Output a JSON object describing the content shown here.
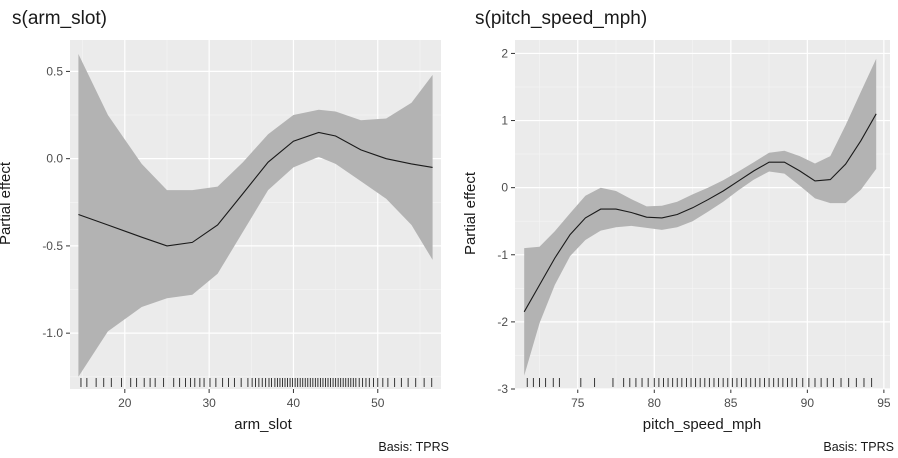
{
  "chart_data": [
    {
      "type": "line",
      "title": "s(arm_slot)",
      "xlabel": "arm_slot",
      "ylabel": "Partial effect",
      "caption": "Basis: TPRS",
      "xlim": [
        13.5,
        57.5
      ],
      "ylim": [
        -1.32,
        0.68
      ],
      "xticks": [
        20,
        30,
        40,
        50
      ],
      "yticks": [
        -1.0,
        -0.5,
        0.0,
        0.5
      ],
      "ytick_labels": [
        "-1.0",
        "-0.5",
        "0.0",
        "0.5"
      ],
      "grid": true,
      "series": [
        {
          "x": [
            14.5,
            18,
            22,
            25,
            28,
            31,
            34,
            37,
            40,
            43,
            45,
            48,
            51,
            54,
            56.5
          ],
          "y": [
            -0.32,
            -0.38,
            -0.45,
            -0.5,
            -0.48,
            -0.38,
            -0.2,
            -0.02,
            0.1,
            0.15,
            0.13,
            0.05,
            0.0,
            -0.03,
            -0.05
          ]
        }
      ],
      "band_upper": [
        0.6,
        0.25,
        -0.03,
        -0.18,
        -0.18,
        -0.16,
        -0.02,
        0.14,
        0.25,
        0.28,
        0.27,
        0.22,
        0.23,
        0.32,
        0.48
      ],
      "band_lower": [
        -1.25,
        -0.99,
        -0.85,
        -0.8,
        -0.78,
        -0.66,
        -0.42,
        -0.18,
        -0.05,
        0.01,
        -0.03,
        -0.13,
        -0.23,
        -0.38,
        -0.58
      ],
      "rug": [
        14.8,
        15.5,
        16.6,
        17.5,
        18.4,
        19.6,
        20.7,
        21.4,
        22.3,
        23.0,
        23.6,
        24.6,
        25.8,
        26.5,
        27.2,
        27.8,
        28.3,
        28.9,
        29.4,
        30.1,
        30.8,
        31.6,
        32.3,
        33.0,
        33.8,
        34.6,
        35.1,
        35.5,
        35.9,
        36.3,
        36.7,
        37.1,
        37.4,
        37.8,
        38.1,
        38.4,
        38.7,
        39.0,
        39.3,
        39.6,
        39.9,
        40.2,
        40.5,
        40.8,
        41.1,
        41.4,
        41.7,
        42.0,
        42.3,
        42.6,
        42.9,
        43.2,
        43.5,
        43.8,
        44.1,
        44.4,
        44.7,
        45.0,
        45.3,
        45.6,
        45.9,
        46.2,
        46.5,
        46.8,
        47.1,
        47.4,
        47.8,
        48.2,
        48.6,
        49.0,
        49.5,
        50.0,
        50.6,
        51.2,
        52.0,
        52.8,
        53.6,
        54.5,
        55.5,
        56.4
      ]
    },
    {
      "type": "line",
      "title": "s(pitch_speed_mph)",
      "xlabel": "pitch_speed_mph",
      "ylabel": "Partial effect",
      "caption": "Basis: TPRS",
      "xlim": [
        70.9,
        95.4
      ],
      "ylim": [
        -3.0,
        2.2
      ],
      "xticks": [
        75,
        80,
        85,
        90,
        95
      ],
      "yticks": [
        -3,
        -2,
        -1,
        0,
        1,
        2
      ],
      "ytick_labels": [
        "-3",
        "-2",
        "-1",
        "0",
        "1",
        "2"
      ],
      "grid": true,
      "series": [
        {
          "x": [
            71.5,
            72.5,
            73.5,
            74.5,
            75.5,
            76.5,
            77.5,
            78.5,
            79.5,
            80.5,
            81.5,
            82.5,
            83.5,
            84.5,
            85.5,
            86.5,
            87.5,
            88.5,
            89.5,
            90.5,
            91.5,
            92.5,
            93.5,
            94.5
          ],
          "y": [
            -1.85,
            -1.45,
            -1.05,
            -0.7,
            -0.45,
            -0.32,
            -0.32,
            -0.37,
            -0.44,
            -0.45,
            -0.4,
            -0.3,
            -0.18,
            -0.05,
            0.1,
            0.25,
            0.38,
            0.38,
            0.25,
            0.1,
            0.12,
            0.35,
            0.7,
            1.1
          ]
        }
      ],
      "band_upper": [
        -0.9,
        -0.88,
        -0.65,
        -0.38,
        -0.12,
        0.0,
        -0.05,
        -0.17,
        -0.28,
        -0.27,
        -0.21,
        -0.1,
        0.0,
        0.11,
        0.24,
        0.38,
        0.52,
        0.55,
        0.47,
        0.36,
        0.47,
        0.93,
        1.43,
        1.92
      ],
      "band_lower": [
        -2.8,
        -2.02,
        -1.45,
        -1.02,
        -0.78,
        -0.64,
        -0.59,
        -0.57,
        -0.6,
        -0.63,
        -0.59,
        -0.5,
        -0.36,
        -0.21,
        -0.04,
        0.12,
        0.24,
        0.21,
        0.03,
        -0.16,
        -0.23,
        -0.23,
        -0.03,
        0.28
      ],
      "rug": [
        71.7,
        72.1,
        72.5,
        72.9,
        73.4,
        73.8,
        75.2,
        76.1,
        77.3,
        78.0,
        78.4,
        78.8,
        79.2,
        79.6,
        80.0,
        80.3,
        80.6,
        80.9,
        81.2,
        81.5,
        81.8,
        82.1,
        82.4,
        82.7,
        83.0,
        83.3,
        83.6,
        83.9,
        84.2,
        84.5,
        84.8,
        85.1,
        85.4,
        85.7,
        86.0,
        86.3,
        86.6,
        86.9,
        87.2,
        87.5,
        87.8,
        88.1,
        88.4,
        88.7,
        89.0,
        89.3,
        89.7,
        90.1,
        90.5,
        90.9,
        91.3,
        91.7,
        92.2,
        92.7,
        93.2,
        93.7,
        94.2
      ]
    }
  ]
}
